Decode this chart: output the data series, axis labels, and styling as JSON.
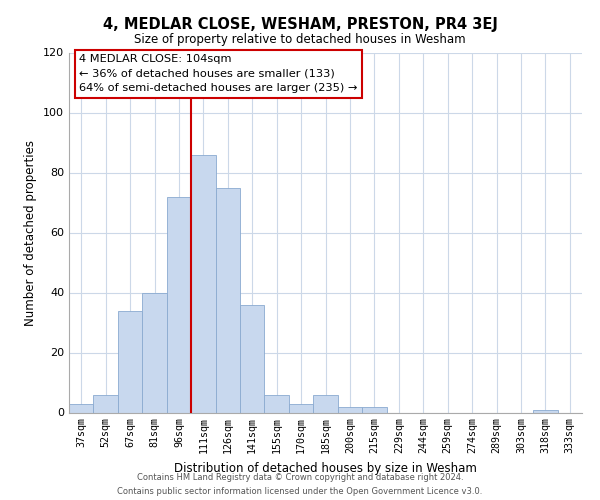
{
  "title": "4, MEDLAR CLOSE, WESHAM, PRESTON, PR4 3EJ",
  "subtitle": "Size of property relative to detached houses in Wesham",
  "xlabel": "Distribution of detached houses by size in Wesham",
  "ylabel": "Number of detached properties",
  "bar_color": "#c8d8ee",
  "bar_edge_color": "#8aaad0",
  "categories": [
    "37sqm",
    "52sqm",
    "67sqm",
    "81sqm",
    "96sqm",
    "111sqm",
    "126sqm",
    "141sqm",
    "155sqm",
    "170sqm",
    "185sqm",
    "200sqm",
    "215sqm",
    "229sqm",
    "244sqm",
    "259sqm",
    "274sqm",
    "289sqm",
    "303sqm",
    "318sqm",
    "333sqm"
  ],
  "values": [
    3,
    6,
    34,
    40,
    72,
    86,
    75,
    36,
    6,
    3,
    6,
    2,
    2,
    0,
    0,
    0,
    0,
    0,
    0,
    1,
    0
  ],
  "vline_x": 4.5,
  "vline_color": "#cc0000",
  "annotation_title": "4 MEDLAR CLOSE: 104sqm",
  "annotation_line1": "← 36% of detached houses are smaller (133)",
  "annotation_line2": "64% of semi-detached houses are larger (235) →",
  "annotation_box_color": "#ffffff",
  "annotation_box_edge": "#cc0000",
  "ylim": [
    0,
    120
  ],
  "yticks": [
    0,
    20,
    40,
    60,
    80,
    100,
    120
  ],
  "footer_line1": "Contains HM Land Registry data © Crown copyright and database right 2024.",
  "footer_line2": "Contains public sector information licensed under the Open Government Licence v3.0.",
  "background_color": "#ffffff",
  "grid_color": "#ccd8e8"
}
